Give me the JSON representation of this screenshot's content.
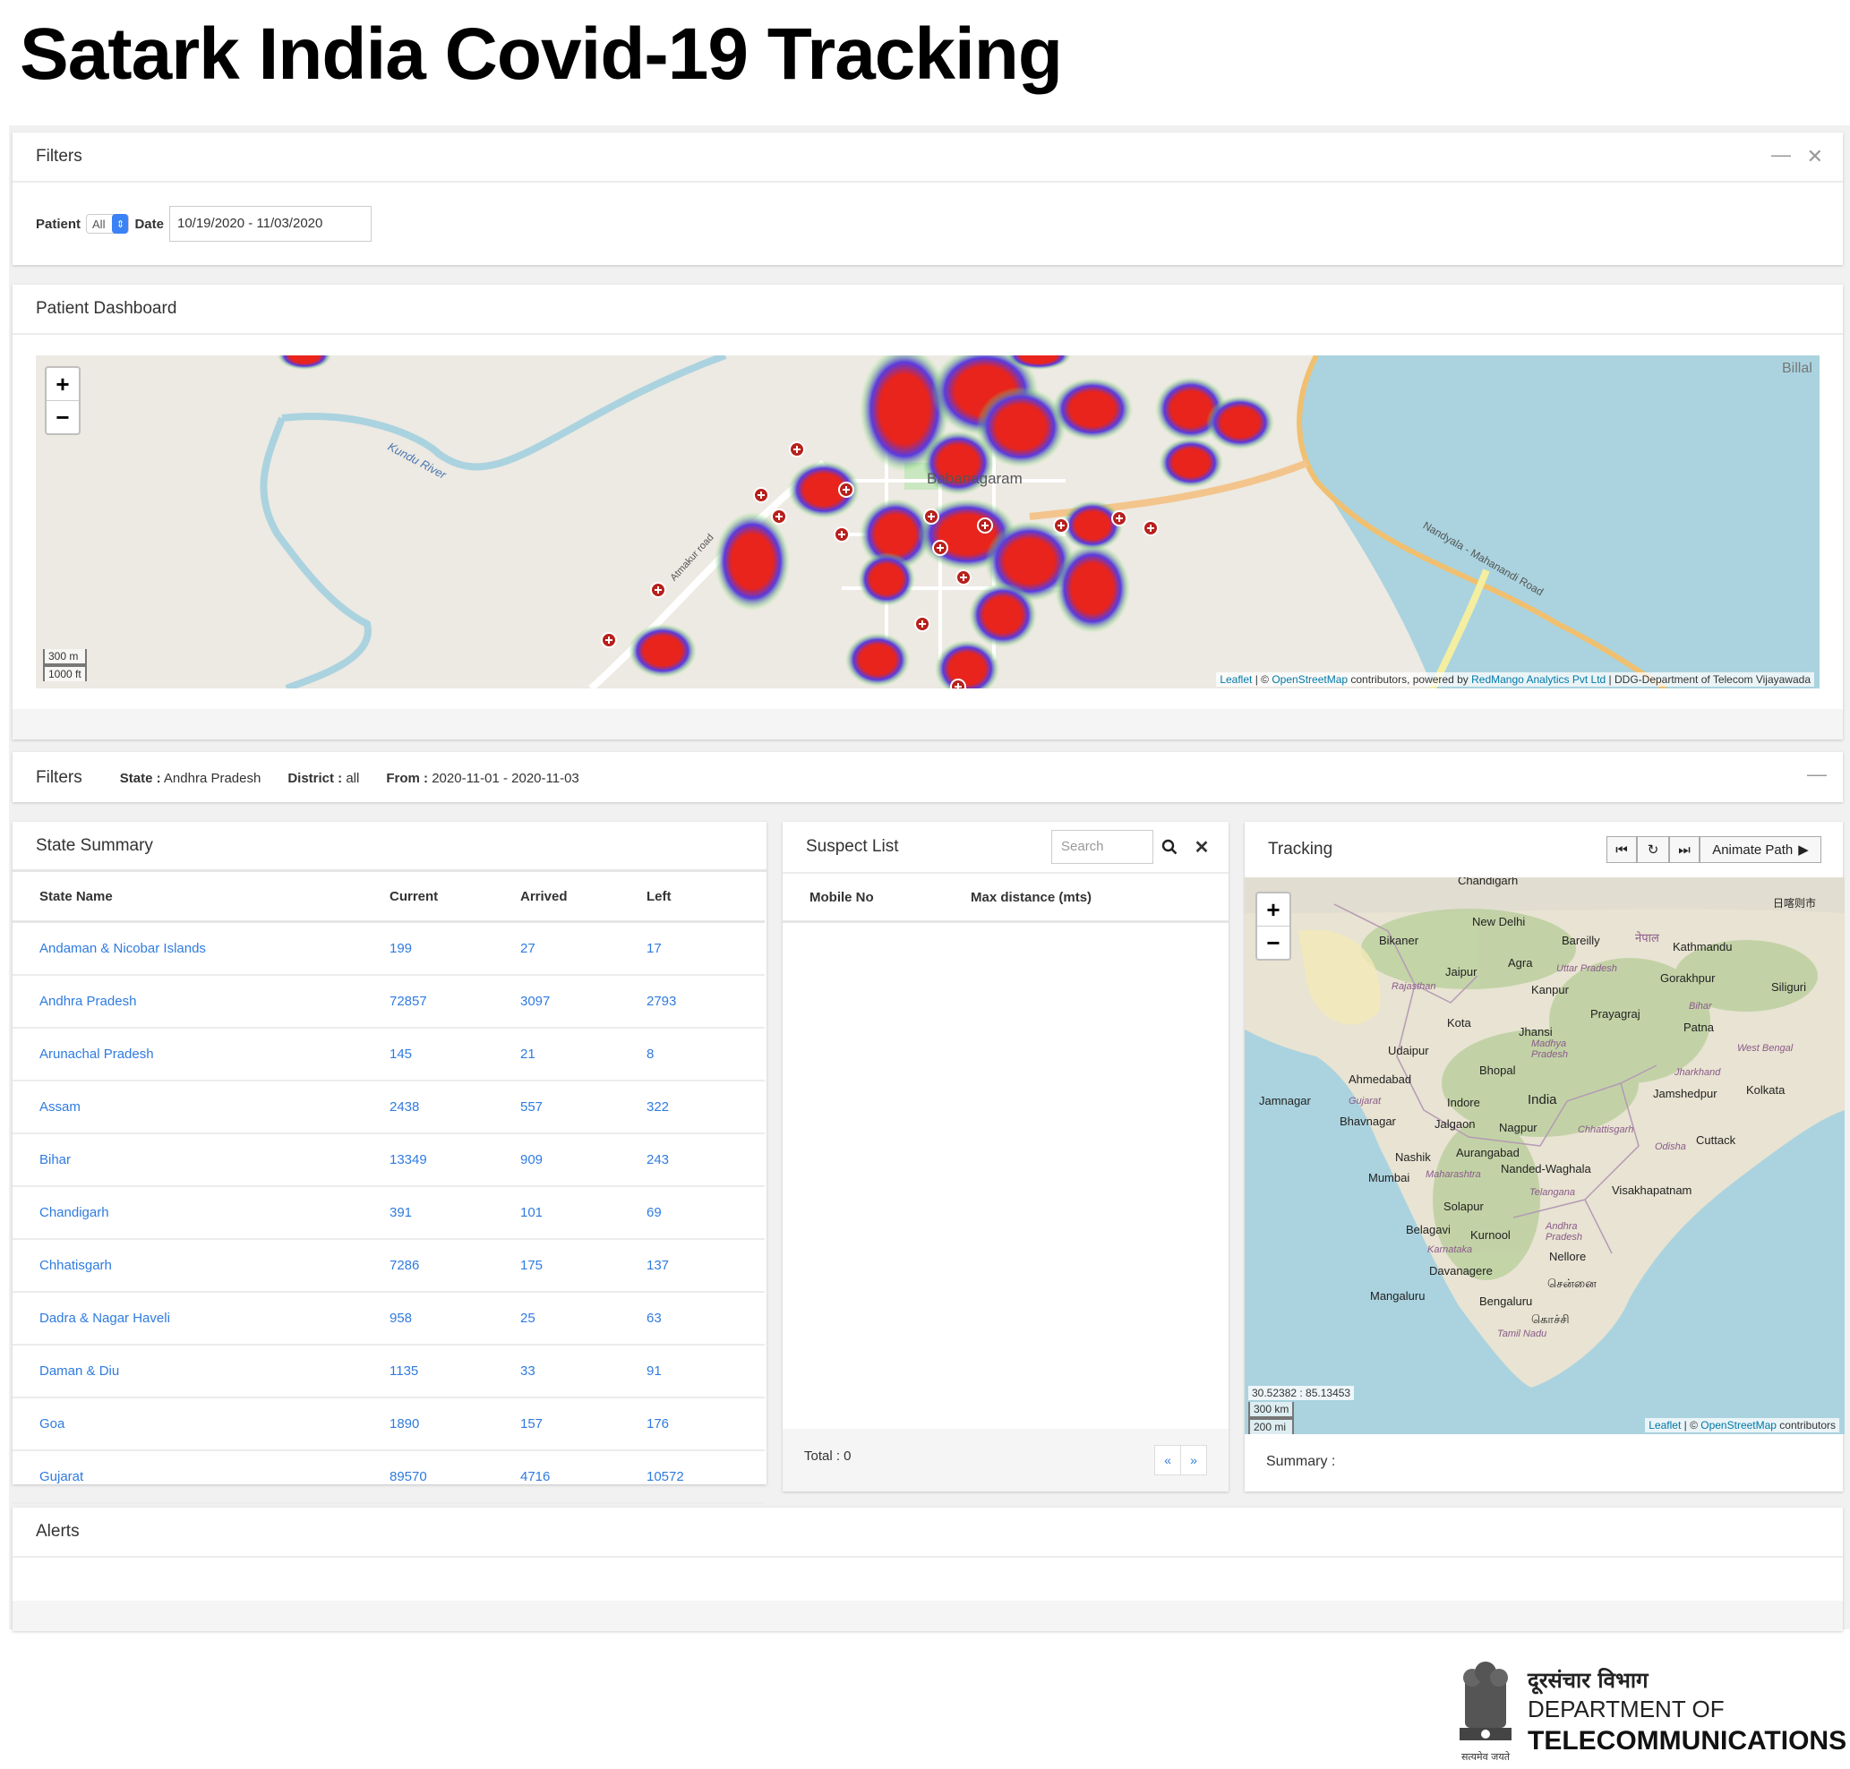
{
  "title": "Satark India Covid-19 Tracking",
  "filters_panel": {
    "title": "Filters",
    "minimize_icon": "minus-icon",
    "close_icon": "close-icon",
    "patient_label": "Patient",
    "patient_value": "All",
    "date_label": "Date",
    "date_value": "10/19/2020 - 11/03/2020"
  },
  "dashboard": {
    "title": "Patient Dashboard",
    "zoom_in": "+",
    "zoom_out": "−",
    "labels": {
      "river": "Kundu River",
      "area": "Babanagaram",
      "road1": "Atmakur road",
      "road2": "Nandyala - Mahanandi Road",
      "place": "Billal"
    },
    "scale_m": "300 m",
    "scale_ft": "1000 ft",
    "attribution": {
      "leaflet": "Leaflet",
      "osm_prefix": " | © ",
      "osm": "OpenStreetMap",
      "middle": " contributors, powered by ",
      "redmango": "RedMango Analytics Pvt Ltd",
      "suffix": " | DDG-Department of Telecom Vijayawada"
    }
  },
  "filters_bar": {
    "title": "Filters",
    "state_label": "State :",
    "state_value": " Andhra Pradesh",
    "district_label": "District :",
    "district_value": " all",
    "from_label": "From :",
    "from_value": " 2020-11-01 - 2020-11-03",
    "minimize_icon": "minus-icon"
  },
  "state_summary": {
    "title": "State Summary",
    "columns": [
      "State Name",
      "Current",
      "Arrived",
      "Left"
    ],
    "rows": [
      [
        "Andaman & Nicobar Islands",
        "199",
        "27",
        "17"
      ],
      [
        "Andhra Pradesh",
        "72857",
        "3097",
        "2793"
      ],
      [
        "Arunachal Pradesh",
        "145",
        "21",
        "8"
      ],
      [
        "Assam",
        "2438",
        "557",
        "322"
      ],
      [
        "Bihar",
        "13349",
        "909",
        "243"
      ],
      [
        "Chandigarh",
        "391",
        "101",
        "69"
      ],
      [
        "Chhatisgarh",
        "7286",
        "175",
        "137"
      ],
      [
        "Dadra & Nagar Haveli",
        "958",
        "25",
        "63"
      ],
      [
        "Daman & Diu",
        "1135",
        "33",
        "91"
      ],
      [
        "Goa",
        "1890",
        "157",
        "176"
      ],
      [
        "Gujarat",
        "89570",
        "4716",
        "10572"
      ]
    ]
  },
  "suspect_list": {
    "title": "Suspect List",
    "search_placeholder": "Search",
    "search_icon": "search-icon",
    "clear_icon": "close-icon",
    "columns": [
      "Mobile No",
      "Max distance (mts)"
    ],
    "total": "Total : 0",
    "prev": "«",
    "next": "»"
  },
  "tracking": {
    "title": "Tracking",
    "first_icon": "skip-back-icon",
    "reset_icon": "rotate-icon",
    "last_icon": "skip-forward-icon",
    "animate_label": "Animate Path",
    "play_icon": "play-icon",
    "zoom_in": "+",
    "zoom_out": "−",
    "coords": "30.52382 : 85.13453",
    "scale_km": "300 km",
    "scale_mi": "200 mi",
    "attribution_leaflet": "Leaflet",
    "attribution_sep": " | © ",
    "attribution_osm": "OpenStreetMap",
    "attribution_suffix": " contributors",
    "summary": "Summary :",
    "cities": {
      "chandigarh": "Chandigarh",
      "newdelhi": "New Delhi",
      "bareilly": "Bareilly",
      "nepal": "नेपाल",
      "kathmandu": "Kathmandu",
      "bikaner": "Bikaner",
      "jaipur": "Jaipur",
      "agra": "Agra",
      "kanpur": "Kanpur",
      "gorakhpur": "Gorakhpur",
      "siliguri": "Siliguri",
      "prayagraj": "Prayagraj",
      "patna": "Patna",
      "kota": "Kota",
      "jhansi": "Jhansi",
      "udaipur": "Udaipur",
      "ahmedabad": "Ahmedabad",
      "bhopal": "Bhopal",
      "jamnagar": "Jamnagar",
      "indore": "Indore",
      "india": "India",
      "jamshedpur": "Jamshedpur",
      "kolkata": "Kolkata",
      "bhavnagar": "Bhavnagar",
      "jalgaon": "Jalgaon",
      "nagpur": "Nagpur",
      "cuttack": "Cuttack",
      "nashik": "Nashik",
      "aurangabad": "Aurangabad",
      "mumbai": "Mumbai",
      "nanded": "Nanded-Waghala",
      "visakhapatnam": "Visakhapatnam",
      "solapur": "Solapur",
      "belagavi": "Belagavi",
      "kurnool": "Kurnool",
      "nellore": "Nellore",
      "davanagere": "Davanagere",
      "chennai": "சென்னை",
      "mangaluru": "Mangaluru",
      "bengaluru": "Bengaluru",
      "kochi": "கொச்சி",
      "japan": "日喀则市"
    },
    "regions": {
      "rajasthan": "Rajasthan",
      "uttarpradesh": "Uttar Pradesh",
      "bihar": "Bihar",
      "madhyapradesh": "Madhya Pradesh",
      "westbengal": "West Bengal",
      "jharkhand": "Jharkhand",
      "gujarat": "Gujarat",
      "chhattisgarh": "Chhattisgarh",
      "odisha": "Odisha",
      "maharashtra": "Maharashtra",
      "telangana": "Telangana",
      "andhra": "Andhra Pradesh",
      "karnataka": "Karnataka",
      "tamilnadu": "Tamil Nadu"
    }
  },
  "alerts": {
    "title": "Alerts"
  },
  "footer": {
    "hindi": "दूरसंचार विभाग",
    "line1": "DEPARTMENT OF",
    "line2": "TELECOMMUNICATIONS",
    "motto": "सत्यमेव जयते",
    "emblem_icon": "ashoka-emblem-icon"
  },
  "colors": {
    "link": "#2f7be0",
    "heat_core": "#e02020",
    "heat_edge": "#5a3be0",
    "water": "#aad3df"
  }
}
